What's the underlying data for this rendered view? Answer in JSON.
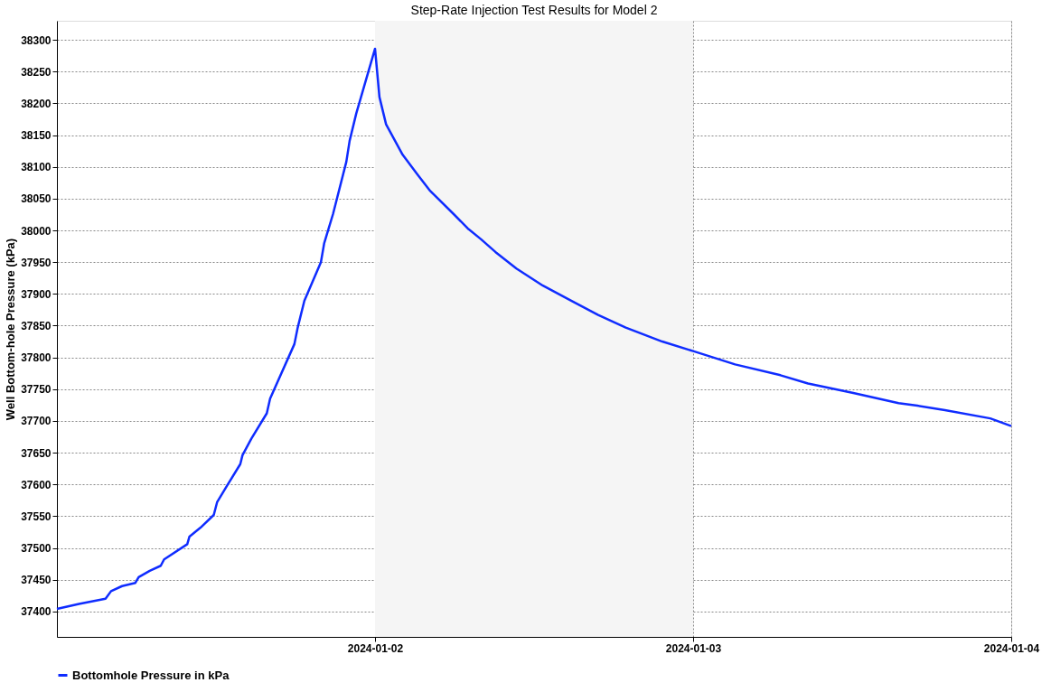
{
  "chart_data": {
    "type": "line",
    "title": "Step-Rate Injection Test Results for Model 2",
    "ylabel": "Well Bottom-hole Pressure (kPa)",
    "x": [
      "2024-01-01T00:00",
      "2024-01-01T01:40",
      "2024-01-01T03:40",
      "2024-01-01T04:05",
      "2024-01-01T04:55",
      "2024-01-01T05:55",
      "2024-01-01T06:10",
      "2024-01-01T07:00",
      "2024-01-01T07:50",
      "2024-01-01T08:05",
      "2024-01-01T09:50",
      "2024-01-01T10:00",
      "2024-01-01T10:50",
      "2024-01-01T11:50",
      "2024-01-01T12:05",
      "2024-01-01T12:50",
      "2024-01-01T13:50",
      "2024-01-01T14:00",
      "2024-01-01T14:40",
      "2024-01-01T15:50",
      "2024-01-01T16:05",
      "2024-01-01T17:55",
      "2024-01-01T18:10",
      "2024-01-01T18:40",
      "2024-01-01T19:55",
      "2024-01-01T20:10",
      "2024-01-01T20:50",
      "2024-01-01T21:50",
      "2024-01-01T22:05",
      "2024-01-01T22:35",
      "2024-01-02T00:00",
      "2024-01-02T00:20",
      "2024-01-02T00:50",
      "2024-01-02T02:05",
      "2024-01-02T03:10",
      "2024-01-02T04:10",
      "2024-01-02T05:55",
      "2024-01-02T07:00",
      "2024-01-02T08:00",
      "2024-01-02T09:05",
      "2024-01-02T10:40",
      "2024-01-02T12:40",
      "2024-01-02T14:50",
      "2024-01-02T16:50",
      "2024-01-02T18:55",
      "2024-01-02T21:40",
      "2024-01-03T00:00",
      "2024-01-03T03:10",
      "2024-01-03T06:35",
      "2024-01-03T08:40",
      "2024-01-03T12:05",
      "2024-01-03T15:30",
      "2024-01-03T16:55",
      "2024-01-03T19:00",
      "2024-01-03T22:25",
      "2024-01-04T00:00"
    ],
    "series": [
      {
        "name": "Bottomhole Pressure in kPa",
        "color": "#0f2cff",
        "values": [
          37404,
          37412,
          37420,
          37432,
          37440,
          37445,
          37454,
          37464,
          37472,
          37482,
          37506,
          37518,
          37532,
          37552,
          37572,
          37598,
          37632,
          37646,
          37672,
          37712,
          37735,
          37821,
          37847,
          37889,
          37950,
          37980,
          38026,
          38108,
          38141,
          38184,
          38286,
          38210,
          38167,
          38119,
          38089,
          38062,
          38026,
          38003,
          37986,
          37966,
          37940,
          37913,
          37889,
          37867,
          37847,
          37825,
          37810,
          37789,
          37772,
          37759,
          37744,
          37728,
          37724,
          37717,
          37704,
          37692
        ]
      }
    ],
    "xlim": [
      "2024-01-01",
      "2024-01-04"
    ],
    "xticks": [
      "2024-01-02",
      "2024-01-03",
      "2024-01-04"
    ],
    "ylim": [
      37360,
      38330
    ],
    "yticks": [
      37400,
      37450,
      37500,
      37550,
      37600,
      37650,
      37700,
      37750,
      37800,
      37850,
      37900,
      37950,
      38000,
      38050,
      38100,
      38150,
      38200,
      38250,
      38300
    ],
    "bands": [
      {
        "axis": "x",
        "from": "2024-01-02",
        "to": "2024-01-03",
        "color": "#f5f5f5"
      }
    ],
    "grid": true,
    "legend": "bottom",
    "marker": "none",
    "line_style": "solid"
  }
}
